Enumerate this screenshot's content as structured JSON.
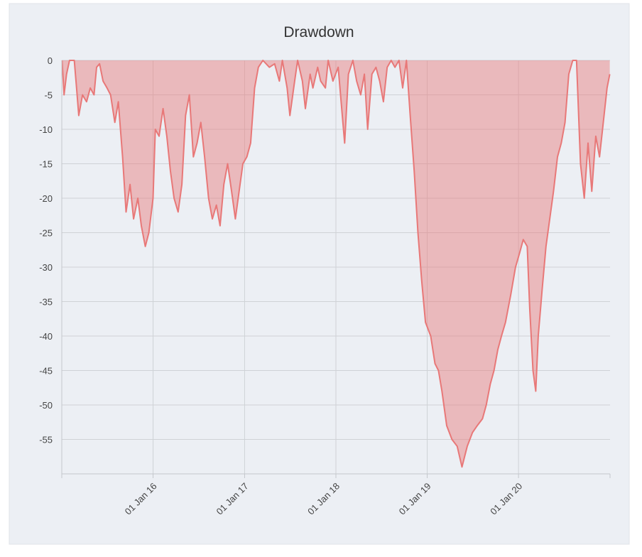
{
  "chart_data": {
    "type": "area",
    "title": "Drawdown",
    "color": "#e87878",
    "grid": true,
    "ylim": [
      -60,
      0
    ],
    "yticks": [
      0,
      -5,
      -10,
      -15,
      -20,
      -25,
      -30,
      -35,
      -40,
      -45,
      -50,
      -55
    ],
    "xlim": [
      "2015-01-01",
      "2021-01-01"
    ],
    "xticks": [
      {
        "value": "2016-01-01",
        "label": "01 Jan 16"
      },
      {
        "value": "2017-01-01",
        "label": "01 Jan 17"
      },
      {
        "value": "2018-01-01",
        "label": "01 Jan 18"
      },
      {
        "value": "2019-01-01",
        "label": "01 Jan 19"
      },
      {
        "value": "2020-01-01",
        "label": "01 Jan 20"
      }
    ],
    "x": [
      "2015-01-02",
      "2015-01-10",
      "2015-01-20",
      "2015-02-01",
      "2015-02-20",
      "2015-03-01",
      "2015-03-10",
      "2015-03-25",
      "2015-04-10",
      "2015-04-25",
      "2015-05-10",
      "2015-05-20",
      "2015-06-01",
      "2015-06-15",
      "2015-07-01",
      "2015-07-15",
      "2015-08-01",
      "2015-08-15",
      "2015-09-01",
      "2015-09-15",
      "2015-10-01",
      "2015-10-15",
      "2015-11-01",
      "2015-11-15",
      "2015-12-01",
      "2015-12-15",
      "2016-01-01",
      "2016-01-10",
      "2016-01-25",
      "2016-02-10",
      "2016-02-25",
      "2016-03-10",
      "2016-03-25",
      "2016-04-10",
      "2016-04-25",
      "2016-05-10",
      "2016-05-25",
      "2016-06-10",
      "2016-06-25",
      "2016-07-10",
      "2016-07-25",
      "2016-08-10",
      "2016-08-25",
      "2016-09-10",
      "2016-09-25",
      "2016-10-10",
      "2016-10-25",
      "2016-11-10",
      "2016-11-25",
      "2016-12-10",
      "2016-12-25",
      "2017-01-10",
      "2017-01-25",
      "2017-02-10",
      "2017-02-25",
      "2017-03-15",
      "2017-04-10",
      "2017-05-01",
      "2017-05-20",
      "2017-06-01",
      "2017-06-20",
      "2017-07-01",
      "2017-07-20",
      "2017-08-01",
      "2017-08-20",
      "2017-09-01",
      "2017-09-20",
      "2017-10-01",
      "2017-10-20",
      "2017-11-01",
      "2017-11-20",
      "2017-12-01",
      "2017-12-20",
      "2018-01-10",
      "2018-02-05",
      "2018-02-20",
      "2018-03-10",
      "2018-03-25",
      "2018-04-10",
      "2018-04-25",
      "2018-05-08",
      "2018-05-25",
      "2018-06-10",
      "2018-06-25",
      "2018-07-10",
      "2018-07-25",
      "2018-08-10",
      "2018-08-25",
      "2018-09-10",
      "2018-09-25",
      "2018-10-10",
      "2018-10-25",
      "2018-11-10",
      "2018-11-25",
      "2018-12-10",
      "2018-12-25",
      "2019-01-15",
      "2019-02-01",
      "2019-02-15",
      "2019-03-01",
      "2019-03-20",
      "2019-04-10",
      "2019-05-01",
      "2019-05-20",
      "2019-06-10",
      "2019-07-01",
      "2019-07-20",
      "2019-08-10",
      "2019-08-25",
      "2019-09-10",
      "2019-09-25",
      "2019-10-10",
      "2019-10-25",
      "2019-11-10",
      "2019-12-01",
      "2019-12-20",
      "2020-01-05",
      "2020-01-20",
      "2020-02-05",
      "2020-02-15",
      "2020-02-28",
      "2020-03-10",
      "2020-03-20",
      "2020-04-05",
      "2020-04-20",
      "2020-05-05",
      "2020-05-20",
      "2020-06-05",
      "2020-06-20",
      "2020-07-05",
      "2020-07-20",
      "2020-08-05",
      "2020-08-20",
      "2020-09-05",
      "2020-09-20",
      "2020-10-05",
      "2020-10-20",
      "2020-11-05",
      "2020-11-20",
      "2020-12-05",
      "2020-12-20",
      "2020-12-31"
    ],
    "values": [
      0,
      -5,
      -2,
      0,
      0,
      -4,
      -8,
      -5,
      -6,
      -4,
      -5,
      -1,
      -0.5,
      -3,
      -4,
      -5,
      -9,
      -6,
      -14,
      -22,
      -18,
      -23,
      -20,
      -24,
      -27,
      -25,
      -20,
      -10,
      -11,
      -7,
      -11,
      -16,
      -20,
      -22,
      -18,
      -8,
      -5,
      -14,
      -12,
      -9,
      -14,
      -20,
      -23,
      -21,
      -24,
      -18,
      -15,
      -19,
      -23,
      -19,
      -15,
      -14,
      -12,
      -4,
      -1,
      0,
      -1,
      -0.5,
      -3,
      0,
      -4,
      -8,
      -3,
      0,
      -3,
      -7,
      -2,
      -4,
      -1,
      -3,
      -4,
      0,
      -3,
      -1,
      -12,
      -2,
      0,
      -3,
      -5,
      -2,
      -10,
      -2,
      -1,
      -3,
      -6,
      -1,
      0,
      -1,
      0,
      -4,
      0,
      -8,
      -16,
      -25,
      -32,
      -38,
      -40,
      -44,
      -45,
      -48,
      -53,
      -55,
      -56,
      -59,
      -56,
      -54,
      -53,
      -52,
      -50,
      -47,
      -45,
      -42,
      -40,
      -38,
      -34,
      -30,
      -28,
      -26,
      -27,
      -36,
      -45,
      -48,
      -40,
      -33,
      -27,
      -23,
      -19,
      -14,
      -12,
      -9,
      -2,
      0,
      0,
      -15,
      -20,
      -12,
      -19,
      -11,
      -14,
      -9,
      -4,
      -2
    ]
  }
}
